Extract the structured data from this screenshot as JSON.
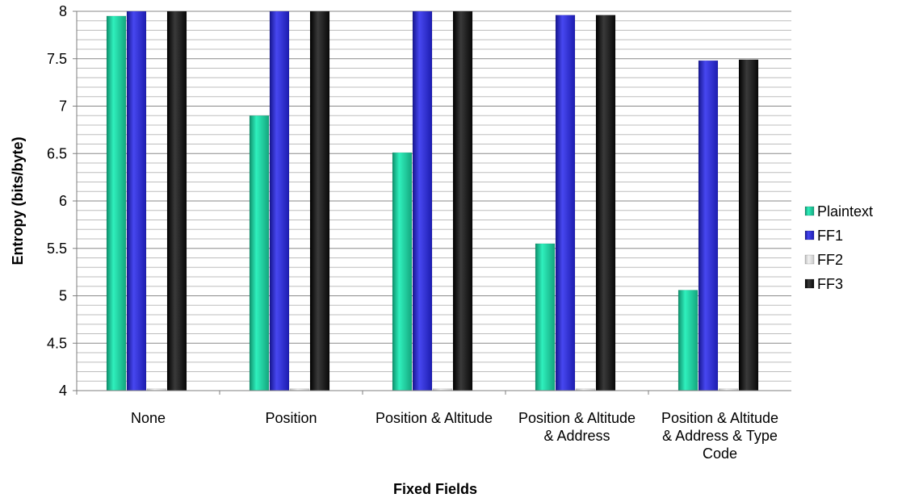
{
  "chart_data": {
    "type": "bar",
    "title": "",
    "xlabel": "Fixed Fields",
    "ylabel": "Entropy (bits/byte)",
    "ylim": [
      4,
      8
    ],
    "yticks": [
      "4",
      "4.5",
      "5",
      "5.5",
      "6",
      "6.5",
      "7",
      "7.5",
      "8"
    ],
    "categories": [
      [
        "None"
      ],
      [
        "Position"
      ],
      [
        "Position & Altitude"
      ],
      [
        "Position & Altitude",
        "& Address"
      ],
      [
        "Position & Altitude",
        "& Address & Type",
        "Code"
      ]
    ],
    "series": [
      {
        "name": "Plaintext",
        "values": [
          7.95,
          6.9,
          6.51,
          5.55,
          5.06
        ]
      },
      {
        "name": "FF1",
        "values": [
          8.0,
          8.0,
          8.0,
          7.96,
          7.48
        ]
      },
      {
        "name": "FF2",
        "values": [
          4.02,
          4.02,
          4.02,
          4.02,
          4.02
        ]
      },
      {
        "name": "FF3",
        "values": [
          8.0,
          8.0,
          8.0,
          7.96,
          7.49
        ]
      }
    ],
    "grid": true,
    "legend": "right",
    "colors": {
      "Plaintext": "#1bd1a0",
      "FF1": "#2a2ad6",
      "FF2": "#d9d9d9",
      "FF3": "#111111"
    }
  }
}
